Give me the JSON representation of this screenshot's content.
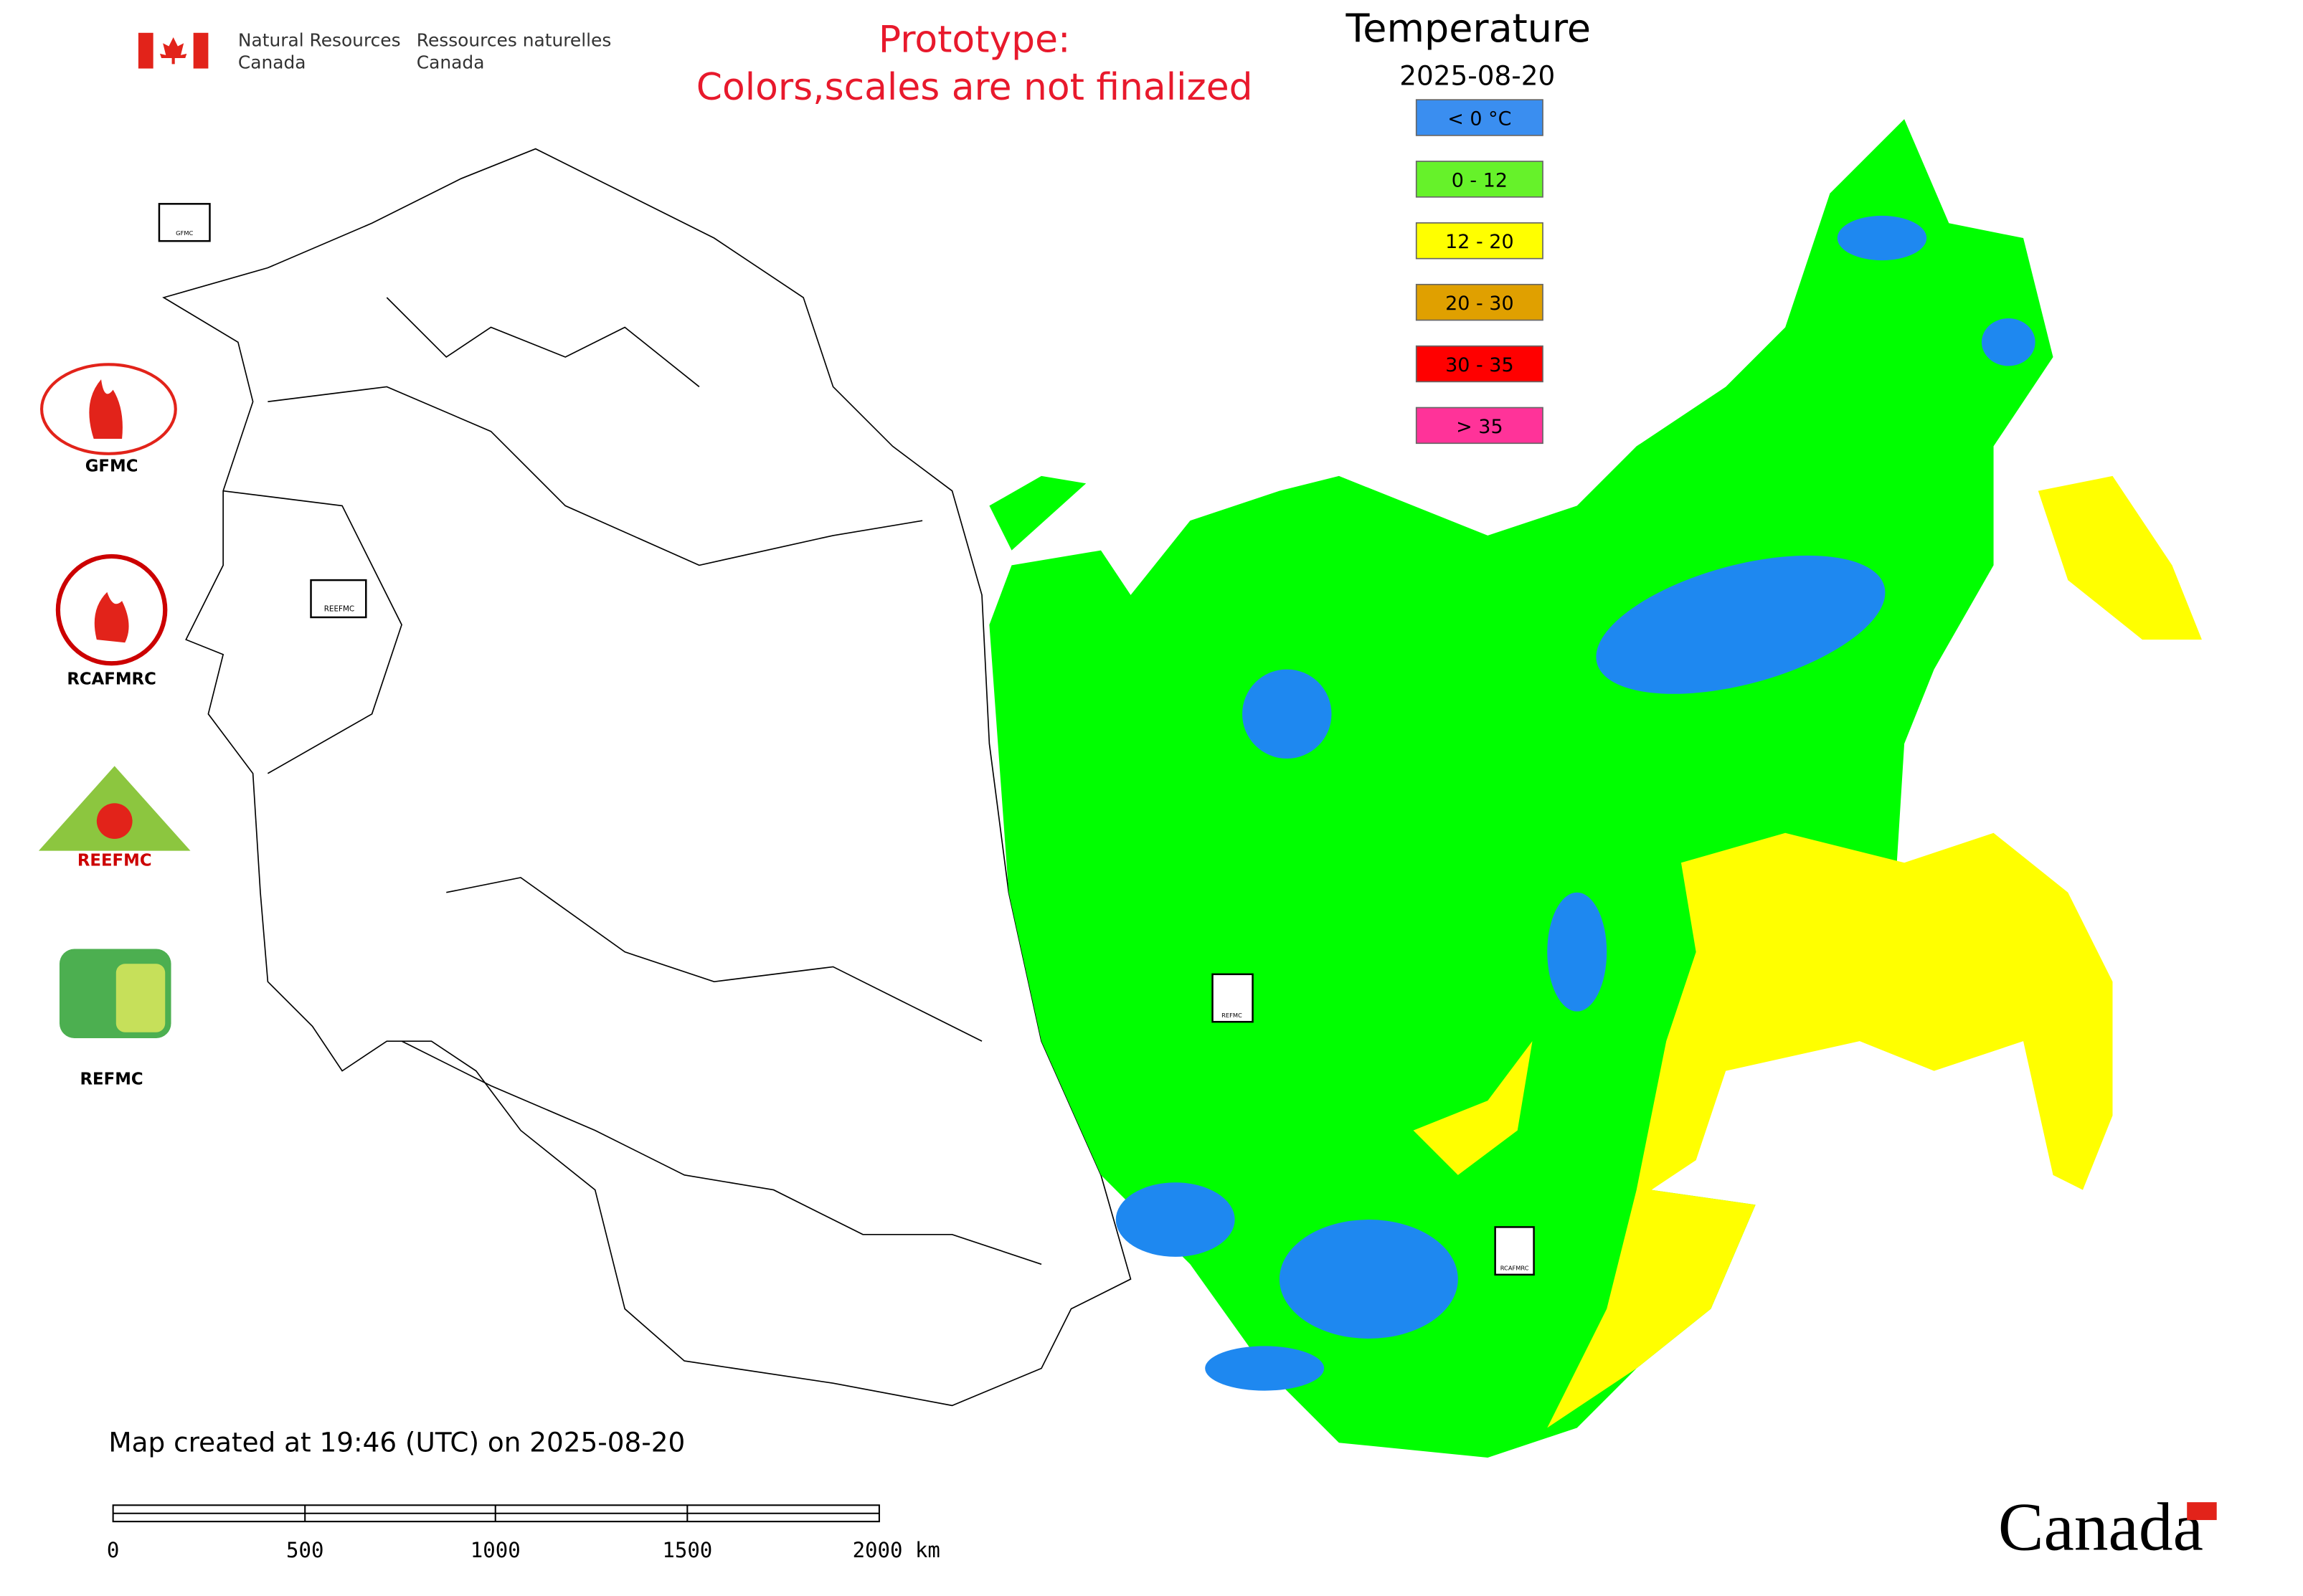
{
  "header": {
    "agency_en": [
      "Natural Resources",
      "Canada"
    ],
    "agency_fr": [
      "Ressources naturelles",
      "Canada"
    ]
  },
  "notice": [
    "Prototype:",
    "Colors,scales are not finalized"
  ],
  "legend": {
    "title": "Temperature",
    "date": "2025-08-20",
    "items": [
      {
        "label": "< 0 °C",
        "color": "#3a8ef0"
      },
      {
        "label": "0 - 12",
        "color": "#66f22a"
      },
      {
        "label": "12 - 20",
        "color": "#ffff00"
      },
      {
        "label": "20 - 30",
        "color": "#e0a000"
      },
      {
        "label": "30 - 35",
        "color": "#ff0000"
      },
      {
        "label": "> 35",
        "color": "#ff3399"
      }
    ]
  },
  "logos": [
    "GFMC",
    "RCAFMRC",
    "REEFMC",
    "REFMC"
  ],
  "markers": [
    "GFMC",
    "REEFMC",
    "REFMC",
    "RCAFMRC"
  ],
  "footer": {
    "created": "Map created at 19:46 (UTC) on 2025-08-20",
    "scale": [
      "0",
      "500",
      "1000",
      "1500",
      "2000 km"
    ],
    "wordmark": "Canada"
  }
}
